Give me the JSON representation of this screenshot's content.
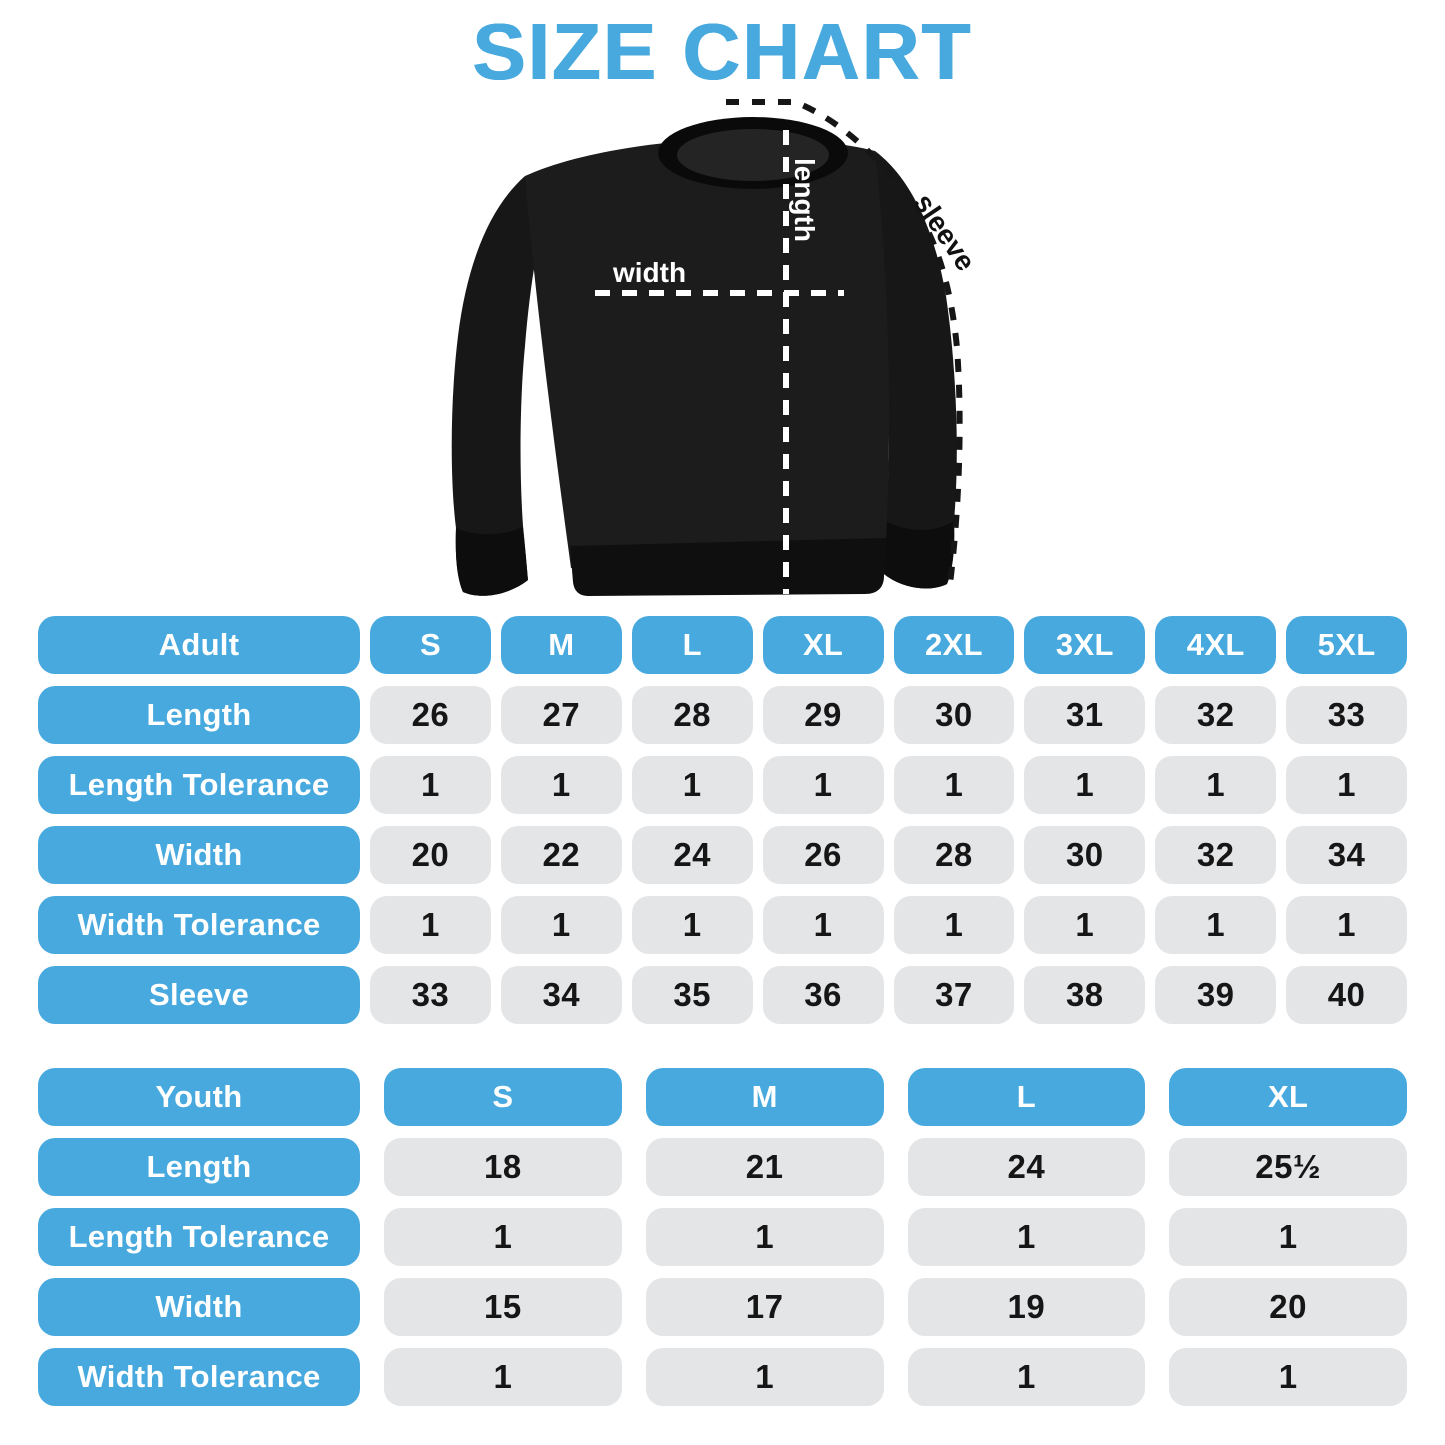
{
  "title": "SIZE CHART",
  "colors": {
    "accent_blue": "#47a9de",
    "cell_gray": "#e4e5e7",
    "shirt_black": "#1b1b1b",
    "value_text": "#161616"
  },
  "diagram": {
    "length_label": "length",
    "width_label": "width",
    "sleeve_label": "sleeve"
  },
  "chart_data": [
    {
      "type": "table",
      "name": "adult-size-table",
      "header": [
        "Adult",
        "S",
        "M",
        "L",
        "XL",
        "2XL",
        "3XL",
        "4XL",
        "5XL"
      ],
      "rows": [
        [
          "Length",
          "26",
          "27",
          "28",
          "29",
          "30",
          "31",
          "32",
          "33"
        ],
        [
          "Length Tolerance",
          "1",
          "1",
          "1",
          "1",
          "1",
          "1",
          "1",
          "1"
        ],
        [
          "Width",
          "20",
          "22",
          "24",
          "26",
          "28",
          "30",
          "32",
          "34"
        ],
        [
          "Width Tolerance",
          "1",
          "1",
          "1",
          "1",
          "1",
          "1",
          "1",
          "1"
        ],
        [
          "Sleeve",
          "33",
          "34",
          "35",
          "36",
          "37",
          "38",
          "39",
          "40"
        ]
      ]
    },
    {
      "type": "table",
      "name": "youth-size-table",
      "header": [
        "Youth",
        "S",
        "M",
        "L",
        "XL"
      ],
      "rows": [
        [
          "Length",
          "18",
          "21",
          "24",
          "25½"
        ],
        [
          "Length Tolerance",
          "1",
          "1",
          "1",
          "1"
        ],
        [
          "Width",
          "15",
          "17",
          "19",
          "20"
        ],
        [
          "Width Tolerance",
          "1",
          "1",
          "1",
          "1"
        ]
      ]
    }
  ]
}
